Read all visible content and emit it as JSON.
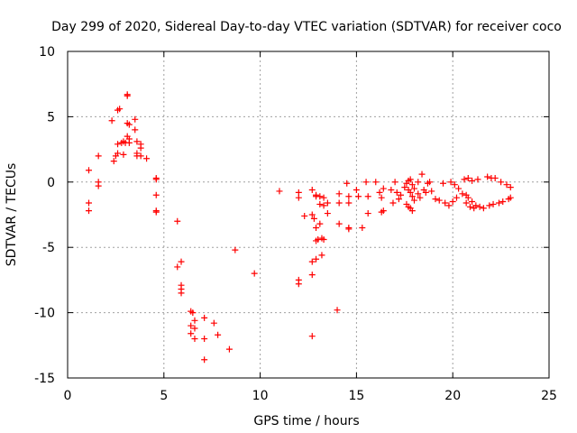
{
  "chart_data": {
    "type": "scatter",
    "title": "Day 299 of 2020, Sidereal Day-to-day VTEC variation (SDTVAR) for receiver coco",
    "xlabel": "GPS time / hours",
    "ylabel": "SDTVAR / TECUs",
    "xlim": [
      0,
      25
    ],
    "ylim": [
      -15,
      10
    ],
    "xticks": [
      0,
      5,
      10,
      15,
      20,
      25
    ],
    "yticks": [
      -15,
      -10,
      -5,
      0,
      5,
      10
    ],
    "grid": true,
    "marker": "+",
    "color": "#ff0000",
    "series": [
      {
        "name": "SDTVAR",
        "points": [
          [
            1.1,
            0.9
          ],
          [
            1.1,
            -1.6
          ],
          [
            1.1,
            -2.2
          ],
          [
            1.6,
            2.0
          ],
          [
            1.6,
            0.0
          ],
          [
            1.6,
            -0.3
          ],
          [
            2.3,
            4.7
          ],
          [
            2.4,
            1.6
          ],
          [
            2.5,
            2.0
          ],
          [
            2.6,
            2.2
          ],
          [
            2.6,
            2.9
          ],
          [
            2.6,
            5.5
          ],
          [
            2.7,
            5.6
          ],
          [
            2.8,
            3.0
          ],
          [
            2.9,
            2.1
          ],
          [
            2.9,
            3.1
          ],
          [
            3.0,
            3.0
          ],
          [
            3.1,
            6.6
          ],
          [
            3.1,
            6.7
          ],
          [
            3.1,
            4.5
          ],
          [
            3.1,
            3.5
          ],
          [
            3.2,
            4.4
          ],
          [
            3.2,
            3.3
          ],
          [
            3.2,
            3.0
          ],
          [
            3.5,
            4.8
          ],
          [
            3.5,
            4.0
          ],
          [
            3.6,
            3.1
          ],
          [
            3.6,
            2.2
          ],
          [
            3.6,
            2.0
          ],
          [
            3.8,
            2.9
          ],
          [
            3.8,
            2.6
          ],
          [
            3.8,
            2.0
          ],
          [
            4.1,
            1.8
          ],
          [
            4.6,
            0.3
          ],
          [
            4.6,
            0.2
          ],
          [
            4.6,
            -1.0
          ],
          [
            4.6,
            -2.2
          ],
          [
            4.6,
            -2.3
          ],
          [
            5.7,
            -3.0
          ],
          [
            5.7,
            -6.5
          ],
          [
            5.9,
            -6.1
          ],
          [
            5.9,
            -7.9
          ],
          [
            5.9,
            -8.2
          ],
          [
            5.9,
            -8.5
          ],
          [
            6.4,
            -9.9
          ],
          [
            6.4,
            -11.0
          ],
          [
            6.4,
            -11.6
          ],
          [
            6.5,
            -10.0
          ],
          [
            6.6,
            -11.2
          ],
          [
            6.6,
            -12.0
          ],
          [
            6.6,
            -10.6
          ],
          [
            7.1,
            -10.4
          ],
          [
            7.1,
            -12.0
          ],
          [
            7.1,
            -13.6
          ],
          [
            7.6,
            -10.8
          ],
          [
            7.8,
            -11.7
          ],
          [
            8.4,
            -12.8
          ],
          [
            8.7,
            -5.2
          ],
          [
            9.7,
            -7.0
          ],
          [
            11.0,
            -0.7
          ],
          [
            12.0,
            -0.8
          ],
          [
            12.0,
            -1.2
          ],
          [
            12.0,
            -7.5
          ],
          [
            12.0,
            -7.8
          ],
          [
            12.3,
            -2.6
          ],
          [
            12.7,
            -2.5
          ],
          [
            12.7,
            -0.6
          ],
          [
            12.7,
            -6.1
          ],
          [
            12.7,
            -7.1
          ],
          [
            12.7,
            -11.8
          ],
          [
            12.8,
            -2.8
          ],
          [
            12.9,
            -1.0
          ],
          [
            12.9,
            -1.1
          ],
          [
            12.9,
            -3.5
          ],
          [
            12.9,
            -4.5
          ],
          [
            12.9,
            -5.9
          ],
          [
            13.0,
            -4.4
          ],
          [
            13.1,
            -1.1
          ],
          [
            13.1,
            -1.7
          ],
          [
            13.1,
            -3.2
          ],
          [
            13.2,
            -4.3
          ],
          [
            13.2,
            -5.6
          ],
          [
            13.3,
            -1.2
          ],
          [
            13.3,
            -1.8
          ],
          [
            13.3,
            -4.4
          ],
          [
            13.5,
            -1.6
          ],
          [
            13.5,
            -2.4
          ],
          [
            14.0,
            -9.8
          ],
          [
            14.1,
            -0.9
          ],
          [
            14.1,
            -1.6
          ],
          [
            14.1,
            -3.2
          ],
          [
            14.5,
            -0.1
          ],
          [
            14.6,
            -1.1
          ],
          [
            14.6,
            -1.6
          ],
          [
            14.6,
            -3.5
          ],
          [
            14.6,
            -3.6
          ],
          [
            15.0,
            -0.6
          ],
          [
            15.1,
            -1.1
          ],
          [
            15.3,
            -3.5
          ],
          [
            15.5,
            0.0
          ],
          [
            15.6,
            -1.1
          ],
          [
            15.6,
            -2.4
          ],
          [
            16.0,
            0.0
          ],
          [
            16.2,
            -0.8
          ],
          [
            16.3,
            -1.2
          ],
          [
            16.3,
            -2.3
          ],
          [
            16.4,
            -0.5
          ],
          [
            16.4,
            -2.2
          ],
          [
            16.8,
            -0.6
          ],
          [
            16.9,
            -1.6
          ],
          [
            17.0,
            0.0
          ],
          [
            17.1,
            -0.8
          ],
          [
            17.2,
            -1.3
          ],
          [
            17.3,
            -1.0
          ],
          [
            17.5,
            -0.4
          ],
          [
            17.6,
            -1.7
          ],
          [
            17.6,
            -0.1
          ],
          [
            17.7,
            0.1
          ],
          [
            17.7,
            -0.6
          ],
          [
            17.7,
            -1.9
          ],
          [
            17.8,
            0.2
          ],
          [
            17.8,
            -0.8
          ],
          [
            17.8,
            -2.0
          ],
          [
            17.9,
            -0.2
          ],
          [
            17.9,
            -1.1
          ],
          [
            17.9,
            -2.2
          ],
          [
            18.0,
            -0.5
          ],
          [
            18.0,
            -1.4
          ],
          [
            18.2,
            0.0
          ],
          [
            18.2,
            -0.9
          ],
          [
            18.3,
            -1.2
          ],
          [
            18.4,
            0.6
          ],
          [
            18.5,
            -0.6
          ],
          [
            18.6,
            -0.8
          ],
          [
            18.7,
            -0.1
          ],
          [
            18.8,
            0.0
          ],
          [
            18.9,
            -0.7
          ],
          [
            19.1,
            -1.3
          ],
          [
            19.3,
            -1.4
          ],
          [
            19.5,
            -0.1
          ],
          [
            19.6,
            -1.6
          ],
          [
            19.8,
            -1.8
          ],
          [
            19.9,
            0.0
          ],
          [
            20.0,
            -1.5
          ],
          [
            20.1,
            -0.2
          ],
          [
            20.2,
            -1.2
          ],
          [
            20.3,
            -0.5
          ],
          [
            20.5,
            -0.9
          ],
          [
            20.6,
            0.2
          ],
          [
            20.7,
            -1.0
          ],
          [
            20.7,
            -1.6
          ],
          [
            20.8,
            0.3
          ],
          [
            20.8,
            -1.2
          ],
          [
            20.9,
            -1.9
          ],
          [
            21.0,
            0.1
          ],
          [
            21.0,
            -1.5
          ],
          [
            21.1,
            -2.0
          ],
          [
            21.2,
            -1.8
          ],
          [
            21.3,
            0.2
          ],
          [
            21.4,
            -1.9
          ],
          [
            21.6,
            -2.0
          ],
          [
            21.8,
            0.4
          ],
          [
            21.9,
            -1.8
          ],
          [
            22.0,
            0.3
          ],
          [
            22.1,
            -1.7
          ],
          [
            22.2,
            0.3
          ],
          [
            22.4,
            -1.6
          ],
          [
            22.5,
            0.0
          ],
          [
            22.6,
            -1.5
          ],
          [
            22.8,
            -0.2
          ],
          [
            22.9,
            -1.3
          ],
          [
            23.0,
            -0.4
          ],
          [
            23.0,
            -1.2
          ]
        ]
      }
    ]
  }
}
